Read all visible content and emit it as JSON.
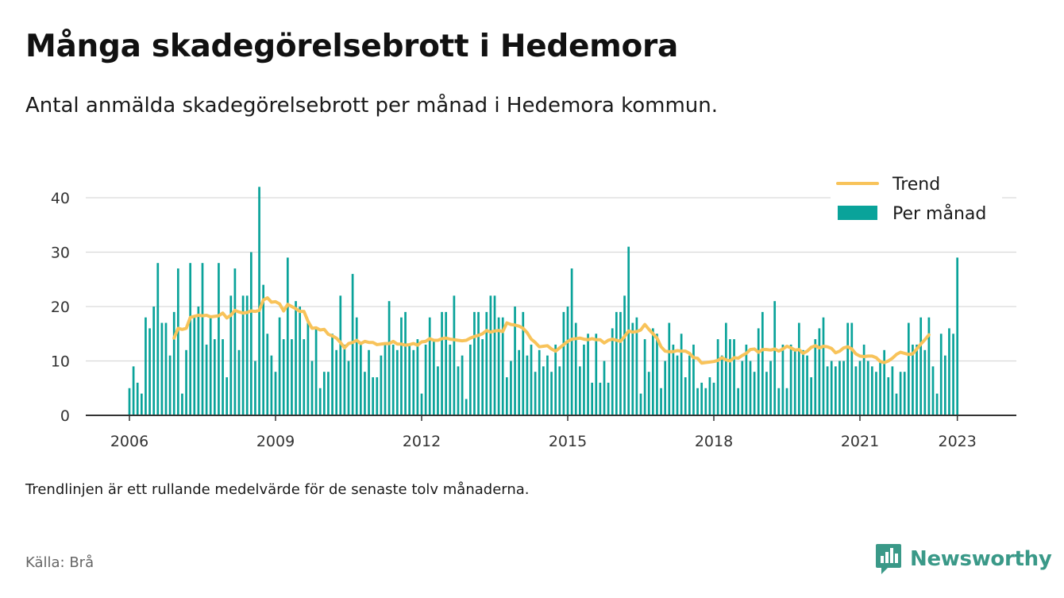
{
  "title": "Många skadegörelsebrott i Hedemora",
  "subtitle": "Antal anmälda skadegörelsebrott per månad i Hedemora kommun.",
  "footnote": "Trendlinjen är ett rullande medelvärde för de senaste tolv månaderna.",
  "source": "Källa: Brå",
  "brand": {
    "name": "Newsworthy",
    "icon": "newsworthy-logo-icon"
  },
  "colors": {
    "bars": "#0aa39a",
    "trend": "#f8c35a",
    "grid": "#d9d9d9",
    "axis": "#333333",
    "brand": "#3a9988"
  },
  "chart_data": {
    "type": "bar",
    "x_start": "2006-01",
    "x_end": "2023-05",
    "ylim": [
      0,
      43
    ],
    "yticks": [
      0,
      10,
      20,
      30,
      40
    ],
    "xticks": [
      "2006",
      "2009",
      "2012",
      "2015",
      "2018",
      "2021",
      "2023"
    ],
    "grid": true,
    "legend_position": "top-right",
    "series": [
      {
        "name": "Per månad",
        "type": "bar",
        "values": [
          5,
          9,
          6,
          4,
          18,
          16,
          20,
          28,
          17,
          17,
          11,
          19,
          27,
          4,
          12,
          28,
          18,
          20,
          28,
          13,
          18,
          14,
          28,
          14,
          7,
          22,
          27,
          12,
          22,
          22,
          30,
          10,
          42,
          24,
          15,
          11,
          8,
          18,
          14,
          29,
          14,
          21,
          20,
          14,
          17,
          10,
          16,
          5,
          8,
          8,
          15,
          12,
          22,
          13,
          10,
          26,
          18,
          13,
          8,
          12,
          7,
          7,
          11,
          13,
          21,
          13,
          12,
          18,
          19,
          13,
          12,
          14,
          4,
          13,
          18,
          14,
          9,
          19,
          19,
          13,
          22,
          9,
          11,
          3,
          13,
          19,
          19,
          14,
          19,
          22,
          22,
          18,
          18,
          7,
          10,
          20,
          12,
          19,
          11,
          13,
          8,
          12,
          9,
          11,
          8,
          13,
          9,
          19,
          20,
          27,
          17,
          9,
          13,
          15,
          6,
          15,
          6,
          10,
          6,
          16,
          19,
          19,
          22,
          31,
          17,
          18,
          4,
          14,
          8,
          16,
          15,
          5,
          10,
          17,
          13,
          11,
          15,
          7,
          11,
          13,
          5,
          6,
          5,
          7,
          6,
          14,
          11,
          17,
          14,
          14,
          5,
          10,
          13,
          10,
          8,
          16,
          19,
          8,
          10,
          21,
          5,
          13,
          5,
          13,
          12,
          17,
          12,
          11,
          7,
          14,
          16,
          18,
          9,
          10,
          9,
          10,
          10,
          17,
          17,
          9,
          10,
          13,
          10,
          9,
          8,
          10,
          12,
          7,
          9,
          4,
          8,
          8,
          17,
          13,
          13,
          18,
          12,
          18,
          9,
          4,
          15,
          11,
          16,
          15,
          29
        ]
      },
      {
        "name": "Trend",
        "type": "line",
        "start_index": 11,
        "values": [
          14.2,
          16.0,
          15.8,
          16.0,
          18.0,
          18.2,
          18.4,
          18.3,
          18.4,
          18.1,
          18.2,
          18.3,
          18.8,
          17.9,
          18.4,
          19.3,
          19.0,
          18.8,
          18.9,
          19.2,
          19.1,
          19.3,
          21.2,
          21.6,
          20.8,
          20.9,
          20.5,
          19.2,
          20.4,
          20.0,
          19.6,
          19.1,
          19.1,
          17.3,
          16.0,
          16.1,
          15.7,
          15.8,
          14.9,
          14.6,
          14.2,
          13.4,
          12.4,
          13.2,
          13.4,
          13.8,
          13.2,
          13.6,
          13.4,
          13.4,
          13.0,
          13.1,
          13.2,
          13.2,
          13.6,
          13.1,
          13.1,
          12.9,
          13.0,
          13.2,
          12.9,
          13.5,
          13.6,
          14.1,
          13.8,
          13.8,
          14.1,
          14.2,
          14.0,
          13.9,
          13.8,
          13.7,
          13.8,
          14.2,
          14.5,
          14.7,
          15.0,
          15.6,
          15.3,
          15.5,
          15.6,
          15.4,
          17.0,
          16.7,
          16.6,
          16.4,
          16.0,
          15.2,
          14.0,
          13.4,
          12.6,
          12.7,
          12.8,
          12.2,
          11.8,
          12.4,
          13.0,
          13.6,
          14.0,
          14.1,
          14.2,
          14.0,
          13.9,
          14.1,
          13.9,
          13.9,
          13.3,
          13.8,
          14.0,
          13.8,
          13.6,
          14.5,
          15.5,
          15.3,
          15.4,
          15.7,
          16.7,
          15.8,
          15.0,
          14.2,
          12.6,
          11.8,
          11.7,
          11.7,
          11.9,
          11.8,
          11.8,
          11.4,
          10.6,
          10.5,
          9.6,
          9.7,
          9.8,
          9.9,
          10.1,
          10.6,
          10.2,
          10.0,
          10.6,
          10.5,
          11.0,
          11.4,
          12.1,
          12.2,
          11.6,
          12.1,
          12.1,
          12.0,
          12.2,
          11.8,
          12.2,
          12.7,
          12.4,
          12.0,
          12.1,
          11.4,
          11.8,
          12.5,
          12.8,
          12.4,
          12.7,
          12.6,
          12.3,
          11.5,
          11.8,
          12.4,
          12.6,
          12.2,
          11.3,
          10.9,
          10.8,
          10.9,
          10.9,
          10.6,
          9.9,
          9.7,
          10.0,
          10.5,
          11.2,
          11.6,
          11.4,
          11.2,
          11.3,
          12.2,
          13.1,
          13.9,
          14.8
        ]
      }
    ]
  }
}
